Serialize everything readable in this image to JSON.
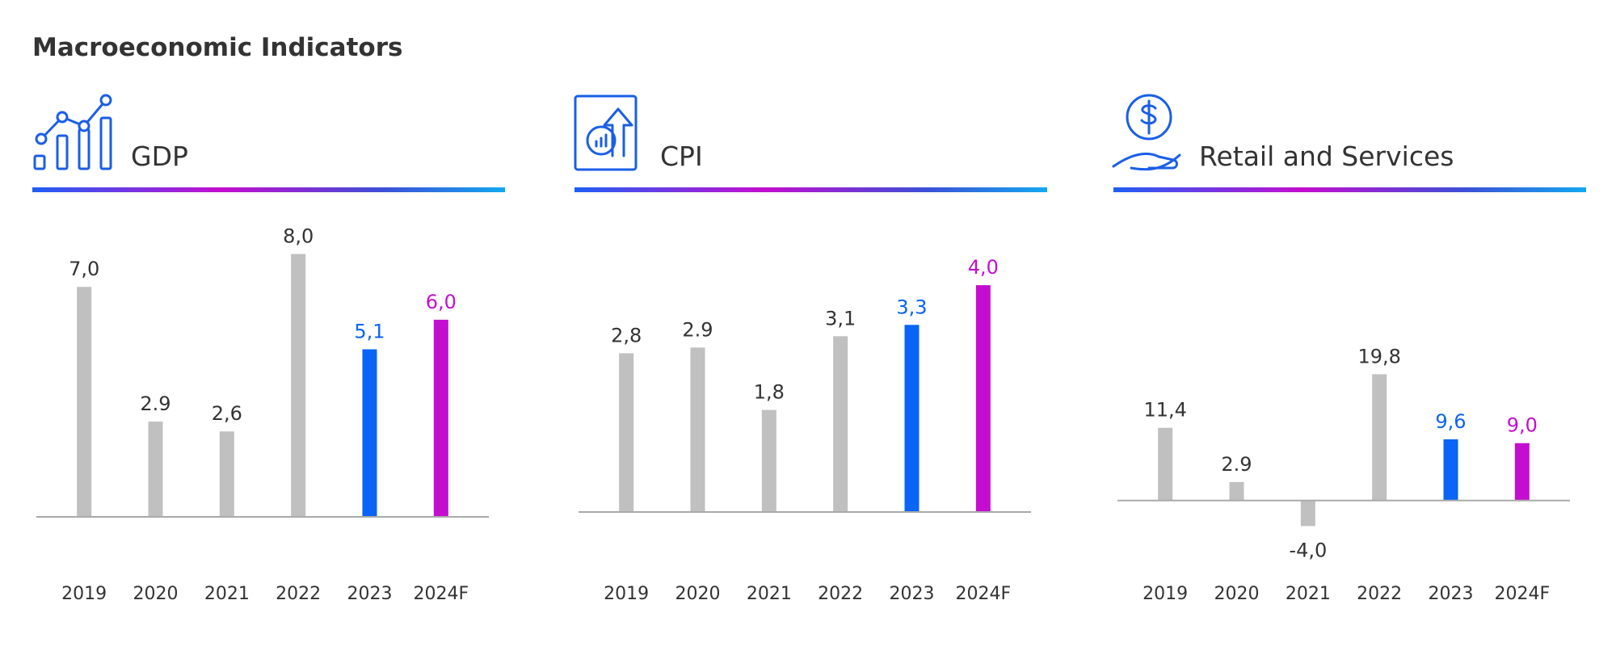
{
  "title": "Macroeconomic Indicators",
  "chart_data": [
    {
      "type": "bar",
      "title": "GDP",
      "categories": [
        "2019",
        "2020",
        "2021",
        "2022",
        "2023",
        "2024F"
      ],
      "values": [
        7.0,
        2.9,
        2.6,
        8.0,
        5.1,
        6.0
      ],
      "value_labels": [
        "7,0",
        "2.9",
        "2,6",
        "8,0",
        "5,1",
        "6,0"
      ],
      "colors": [
        "#c0c0c0",
        "#c0c0c0",
        "#c0c0c0",
        "#c0c0c0",
        "#0a64f5",
        "#c40ecf"
      ],
      "ylim": [
        0,
        8.8
      ]
    },
    {
      "type": "bar",
      "title": "CPI",
      "categories": [
        "2019",
        "2020",
        "2021",
        "2022",
        "2023",
        "2024F"
      ],
      "values": [
        2.8,
        2.9,
        1.8,
        3.1,
        3.3,
        4.0
      ],
      "value_labels": [
        "2,8",
        "2.9",
        "1,8",
        "3,1",
        "3,3",
        "4,0"
      ],
      "colors": [
        "#c0c0c0",
        "#c0c0c0",
        "#c0c0c0",
        "#c0c0c0",
        "#0a64f5",
        "#c40ecf"
      ],
      "ylim": [
        0,
        4.5
      ]
    },
    {
      "type": "bar",
      "title": "Retail and Services",
      "categories": [
        "2019",
        "2020",
        "2021",
        "2022",
        "2023",
        "2024F"
      ],
      "values": [
        11.4,
        2.9,
        -4.0,
        19.8,
        9.6,
        9.0
      ],
      "value_labels": [
        "11,4",
        "2.9",
        "-4,0",
        "19,8",
        "9,6",
        "9,0"
      ],
      "colors": [
        "#c0c0c0",
        "#c0c0c0",
        "#c0c0c0",
        "#c0c0c0",
        "#0a64f5",
        "#c40ecf"
      ],
      "ylim": [
        -8,
        22
      ]
    }
  ]
}
